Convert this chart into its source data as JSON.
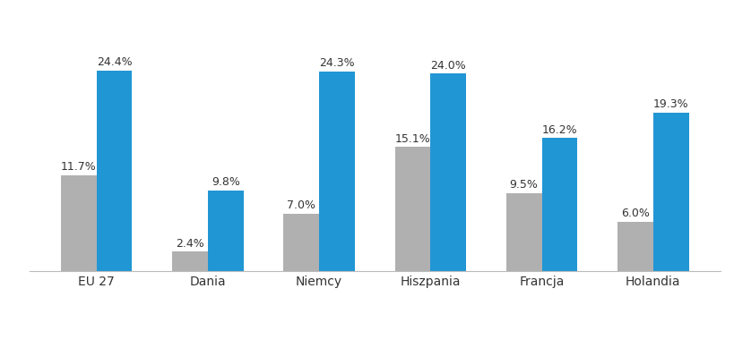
{
  "categories": [
    "EU 27",
    "Dania",
    "Niemcy",
    "Hiszpania",
    "Francja",
    "Holandia"
  ],
  "series_2322": [
    11.7,
    2.4,
    7.0,
    15.1,
    9.5,
    6.0
  ],
  "series_2321": [
    24.4,
    9.8,
    24.3,
    24.0,
    16.2,
    19.3
  ],
  "color_2322": "#b0b0b0",
  "color_2321": "#2196d4",
  "bar_width": 0.32,
  "ylim": [
    0,
    30
  ],
  "background_color": "#ffffff",
  "label_fontsize": 9.0,
  "tick_fontsize": 10,
  "legend_fontsize": 10
}
